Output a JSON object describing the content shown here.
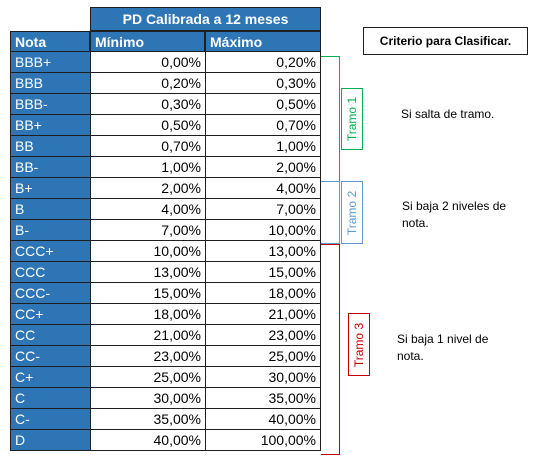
{
  "table": {
    "header_title": "PD Calibrada a 12 meses",
    "columns": [
      "Nota",
      "Mínimo",
      "Máximo"
    ],
    "rows": [
      {
        "nota": "BBB+",
        "minimo": "0,00%",
        "maximo": "0,20%"
      },
      {
        "nota": "BBB",
        "minimo": "0,20%",
        "maximo": "0,30%"
      },
      {
        "nota": "BBB-",
        "minimo": "0,30%",
        "maximo": "0,50%"
      },
      {
        "nota": "BB+",
        "minimo": "0,50%",
        "maximo": "0,70%"
      },
      {
        "nota": "BB",
        "minimo": "0,70%",
        "maximo": "1,00%"
      },
      {
        "nota": "BB-",
        "minimo": "1,00%",
        "maximo": "2,00%"
      },
      {
        "nota": "B+",
        "minimo": "2,00%",
        "maximo": "4,00%"
      },
      {
        "nota": "B",
        "minimo": "4,00%",
        "maximo": "7,00%"
      },
      {
        "nota": "B-",
        "minimo": "7,00%",
        "maximo": "10,00%"
      },
      {
        "nota": "CCC+",
        "minimo": "10,00%",
        "maximo": "13,00%"
      },
      {
        "nota": "CCC",
        "minimo": "13,00%",
        "maximo": "15,00%"
      },
      {
        "nota": "CCC-",
        "minimo": "15,00%",
        "maximo": "18,00%"
      },
      {
        "nota": "CC+",
        "minimo": "18,00%",
        "maximo": "21,00%"
      },
      {
        "nota": "CC",
        "minimo": "21,00%",
        "maximo": "23,00%"
      },
      {
        "nota": "CC-",
        "minimo": "23,00%",
        "maximo": "25,00%"
      },
      {
        "nota": "C+",
        "minimo": "25,00%",
        "maximo": "30,00%"
      },
      {
        "nota": "C",
        "minimo": "30,00%",
        "maximo": "35,00%"
      },
      {
        "nota": "C-",
        "minimo": "35,00%",
        "maximo": "40,00%"
      },
      {
        "nota": "D",
        "minimo": "40,00%",
        "maximo": "100,00%"
      }
    ]
  },
  "criteria": {
    "title": "Criterio para Clasificar.",
    "tramos": [
      {
        "label": "Tramo 1",
        "note": "Si salta de tramo.",
        "color": "#00b050"
      },
      {
        "label": "Tramo 2",
        "note": "Si baja 2 niveles de nota.",
        "color": "#5b9bd5"
      },
      {
        "label": "Tramo 3",
        "note": "Si baja 1 nivel de nota.",
        "color": "#c00000"
      }
    ]
  },
  "colors": {
    "header_fill": "#2e75b6",
    "header_text": "#ffffff"
  }
}
